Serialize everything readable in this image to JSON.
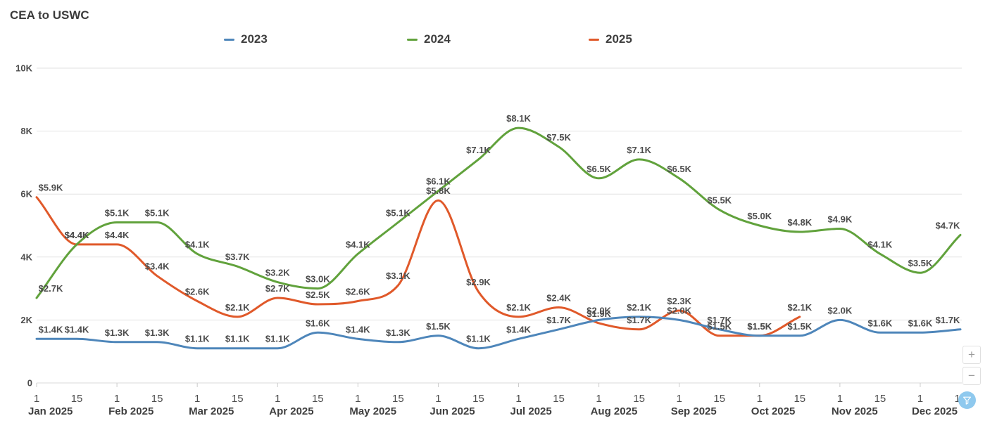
{
  "title": "CEA to USWC",
  "legend": [
    {
      "label": "2023",
      "color": "#4e86ba"
    },
    {
      "label": "2024",
      "color": "#61a23c"
    },
    {
      "label": "2025",
      "color": "#e0592a"
    }
  ],
  "y_axis": {
    "ticks": [
      {
        "label": "10K",
        "value": 10000
      },
      {
        "label": "8K",
        "value": 8000
      },
      {
        "label": "6K",
        "value": 6000
      },
      {
        "label": "4K",
        "value": 4000
      },
      {
        "label": "2K",
        "value": 2000
      },
      {
        "label": "0",
        "value": 0
      }
    ]
  },
  "x_axis": {
    "day_ticks": [
      "1",
      "15"
    ],
    "months": [
      "Jan 2025",
      "Feb 2025",
      "Mar 2025",
      "Apr 2025",
      "May 2025",
      "Jun 2025",
      "Jul 2025",
      "Aug 2025",
      "Sep 2025",
      "Oct 2025",
      "Nov 2025",
      "Dec 2025"
    ]
  },
  "chart_data": {
    "type": "line",
    "title": "CEA to USWC",
    "x_categories": [
      "Jan 1",
      "Jan 15",
      "Feb 1",
      "Feb 15",
      "Mar 1",
      "Mar 15",
      "Apr 1",
      "Apr 15",
      "May 1",
      "May 15",
      "Jun 1",
      "Jun 15",
      "Jul 1",
      "Jul 15",
      "Aug 1",
      "Aug 15",
      "Sep 1",
      "Sep 15",
      "Oct 1",
      "Oct 15",
      "Nov 1",
      "Nov 15",
      "Dec 1",
      "Dec 15"
    ],
    "ylim": [
      0,
      10000
    ],
    "grid": true,
    "legend_position": "top",
    "point_label_format": "$X.XK",
    "series": [
      {
        "name": "2023",
        "color": "#4e86ba",
        "values": [
          1400,
          1400,
          1300,
          1300,
          1100,
          1100,
          1100,
          1600,
          1400,
          1300,
          1500,
          1100,
          1400,
          1700,
          2000,
          2100,
          2000,
          1700,
          1500,
          1500,
          2000,
          1600,
          1600,
          1700
        ]
      },
      {
        "name": "2024",
        "color": "#61a23c",
        "values": [
          2700,
          4400,
          5100,
          5100,
          4100,
          3700,
          3200,
          3000,
          4100,
          5100,
          6100,
          7100,
          8100,
          7500,
          6500,
          7100,
          6500,
          5500,
          5000,
          4800,
          4900,
          4100,
          3500,
          4700
        ]
      },
      {
        "name": "2025",
        "color": "#e0592a",
        "values": [
          5900,
          4400,
          4400,
          3400,
          2600,
          2100,
          2700,
          2500,
          2600,
          3100,
          5800,
          2900,
          2100,
          2400,
          1900,
          1700,
          2300,
          1500,
          1500,
          2100
        ]
      }
    ]
  },
  "controls": {
    "zoom_in_label": "+",
    "zoom_out_label": "−",
    "filter_icon": "funnel-icon"
  },
  "colors": {
    "gridline": "#e2e2e2",
    "axis_line": "#d9d9d9",
    "axis_text": "#4d4d4d",
    "data_label": "#4d4d4d"
  }
}
